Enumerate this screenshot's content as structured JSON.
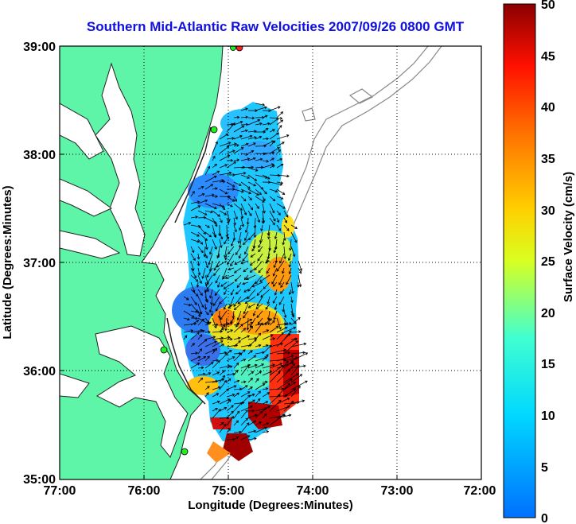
{
  "title": "Southern Mid-Atlantic Raw Velocities 2007/09/26 0800 GMT",
  "axes": {
    "xlabel": "Longitude (Degrees:Minutes)",
    "ylabel": "Latitude (Degrees:Minutes)",
    "x_ticks": [
      "77:00",
      "76:00",
      "75:00",
      "74:00",
      "73:00",
      "72:00"
    ],
    "y_ticks": [
      "39:00",
      "38:00",
      "37:00",
      "36:00",
      "35:00"
    ],
    "xlim": [
      -77,
      -72
    ],
    "ylim": [
      35,
      39
    ]
  },
  "colorbar": {
    "label": "Surface Velocity (cm/s)",
    "ticks": [
      "50",
      "45",
      "40",
      "35",
      "30",
      "25",
      "20",
      "15",
      "10",
      "5",
      "0"
    ],
    "range": [
      0,
      50
    ]
  },
  "colors": {
    "land": "#5ff5a8",
    "title": "#1010e0",
    "station": "#22ee22"
  },
  "chart_data": {
    "type": "heatmap",
    "title": "Southern Mid-Atlantic Raw Velocities 2007/09/26 0800 GMT",
    "xlabel": "Longitude (Degrees:Minutes)",
    "ylabel": "Latitude (Degrees:Minutes)",
    "xlim": [
      -77,
      -72
    ],
    "ylim": [
      35,
      39
    ],
    "grid": true,
    "colorbar_range": [
      0,
      50
    ],
    "stations": [
      {
        "lon": -74.9,
        "lat": 38.98,
        "color": "red"
      },
      {
        "lon": -75.1,
        "lat": 38.23,
        "color": "green"
      },
      {
        "lon": -75.7,
        "lat": 36.2,
        "color": "green"
      },
      {
        "lon": -75.5,
        "lat": 35.25,
        "color": "green"
      }
    ]
  }
}
